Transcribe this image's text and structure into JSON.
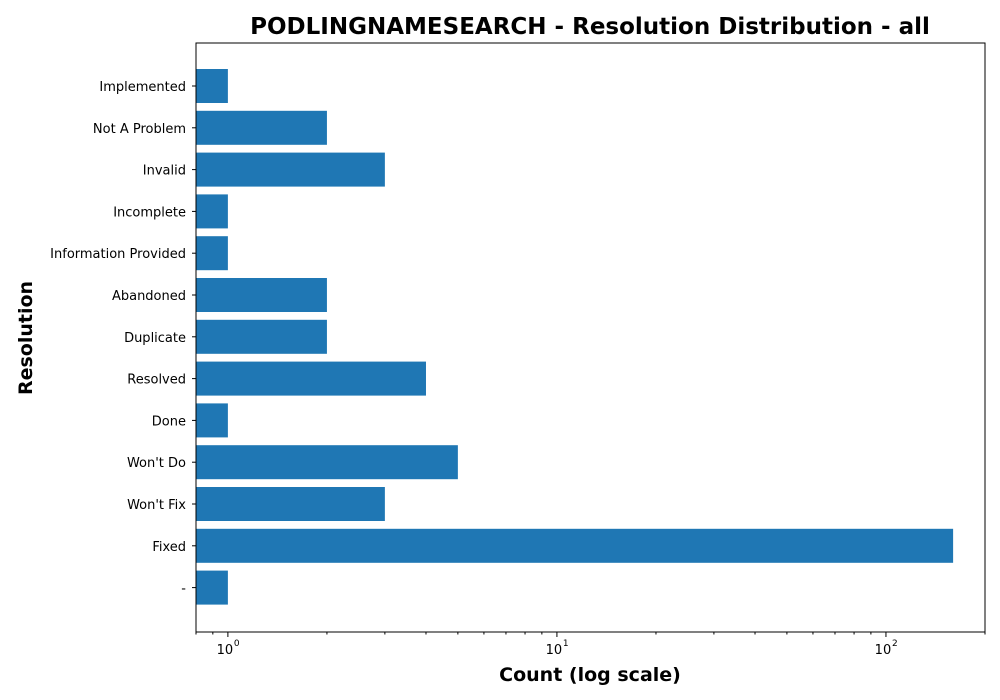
{
  "chart_data": {
    "type": "bar",
    "orientation": "horizontal",
    "title": "PODLINGNAMESEARCH - Resolution Distribution - all",
    "xlabel": "Count (log scale)",
    "ylabel": "Resolution",
    "xscale": "log",
    "xlim": [
      0.8,
      200
    ],
    "x_ticks": [
      {
        "base": "10",
        "exp": "0",
        "value": 1
      },
      {
        "base": "10",
        "exp": "1",
        "value": 10
      },
      {
        "base": "10",
        "exp": "2",
        "value": 100
      }
    ],
    "categories": [
      "Implemented",
      "Not A Problem",
      "Invalid",
      "Incomplete",
      "Information Provided",
      "Abandoned",
      "Duplicate",
      "Resolved",
      "Done",
      "Won't Do",
      "Won't Fix",
      "Fixed",
      "-"
    ],
    "values": [
      1,
      2,
      3,
      1,
      1,
      2,
      2,
      4,
      1,
      5,
      3,
      160,
      1
    ],
    "color": "#1f77b4",
    "grid": false,
    "legend": "none"
  }
}
